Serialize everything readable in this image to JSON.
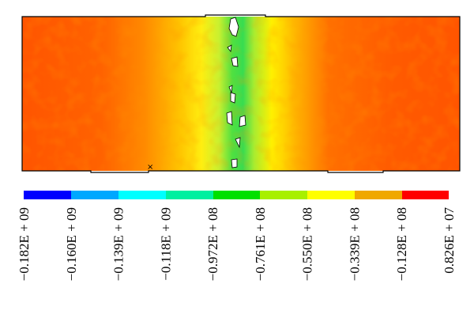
{
  "legend": {
    "labels": [
      "−0.182E + 09",
      "−0.160E + 09",
      "−0.139E + 09",
      "−0.118E + 09",
      "−0.972E + 08",
      "−0.761E + 08",
      "−0.550E + 08",
      "−0.339E + 08",
      "−0.128E + 08",
      "0.826E + 07"
    ]
  }
}
